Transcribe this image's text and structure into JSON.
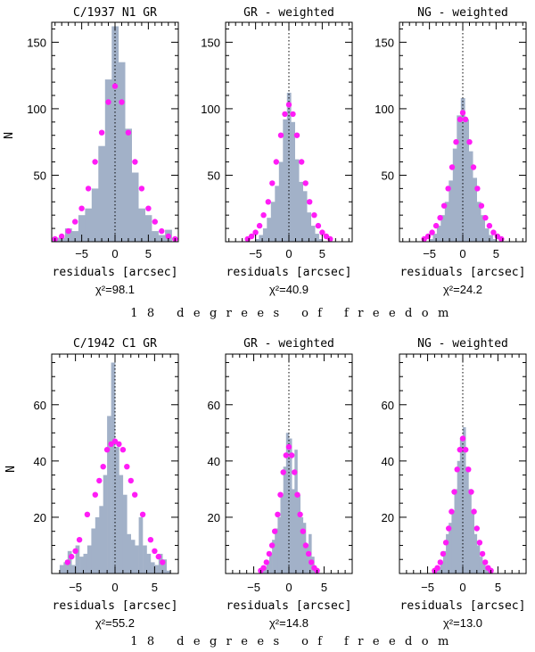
{
  "chart_data": [
    {
      "type": "bar",
      "row": 0,
      "col": 0,
      "title": "C/1937 N1   GR",
      "xlabel": "residuals [arcsec]",
      "ylabel": "N",
      "chi2": "χ²=98.1",
      "xlim": [
        -9.5,
        9.5
      ],
      "ylim": [
        0,
        165
      ],
      "xticks": [
        -5,
        0,
        5
      ],
      "yticks": [
        50,
        100,
        150
      ],
      "bin_width": 1,
      "bins": [
        -9,
        -8,
        -7,
        -6,
        -5,
        -4,
        -3,
        -2,
        -1,
        0,
        1,
        2,
        3,
        4,
        5,
        6,
        7,
        8
      ],
      "counts": [
        3,
        3,
        10,
        8,
        20,
        25,
        40,
        72,
        122,
        162,
        135,
        85,
        52,
        25,
        20,
        8,
        5,
        9
      ],
      "model_x": [
        -9,
        -8,
        -7,
        -6,
        -5,
        -4,
        -3,
        -2,
        -1,
        0,
        1,
        2,
        3,
        4,
        5,
        6,
        7,
        8,
        9
      ],
      "model_y": [
        2,
        4,
        8,
        15,
        25,
        40,
        60,
        82,
        105,
        117,
        105,
        82,
        60,
        40,
        25,
        15,
        8,
        4,
        2
      ]
    },
    {
      "type": "bar",
      "row": 0,
      "col": 1,
      "title": "GR - weighted",
      "xlabel": "residuals [arcsec]",
      "ylabel": "",
      "chi2": "χ²=40.9",
      "xlim": [
        -9.5,
        9.5
      ],
      "ylim": [
        0,
        165
      ],
      "xticks": [
        -5,
        0,
        5
      ],
      "yticks": [
        50,
        100,
        150
      ],
      "bin_width": 0.6,
      "bins": [
        -4.8,
        -4.2,
        -3.6,
        -3.0,
        -2.4,
        -1.8,
        -1.2,
        -0.6,
        0,
        0.6,
        1.2,
        1.8,
        2.4,
        3.0,
        3.6,
        4.2,
        4.8
      ],
      "counts": [
        2,
        5,
        10,
        18,
        30,
        42,
        60,
        92,
        112,
        90,
        62,
        45,
        38,
        22,
        12,
        6,
        2
      ],
      "model_x": [
        -6.2,
        -5.6,
        -5.0,
        -4.4,
        -3.8,
        -3.1,
        -2.5,
        -1.9,
        -1.2,
        -0.6,
        0,
        0.6,
        1.2,
        1.9,
        2.5,
        3.1,
        3.8,
        4.4,
        5.0,
        5.6,
        6.2
      ],
      "model_y": [
        2,
        4,
        7,
        12,
        20,
        30,
        44,
        60,
        80,
        96,
        103,
        96,
        80,
        60,
        44,
        30,
        20,
        12,
        7,
        4,
        2
      ]
    },
    {
      "type": "bar",
      "row": 0,
      "col": 2,
      "title": "NG - weighted",
      "xlabel": "residuals [arcsec]",
      "ylabel": "",
      "chi2": "χ²=24.2",
      "xlim": [
        -9.5,
        9.5
      ],
      "ylim": [
        0,
        165
      ],
      "xticks": [
        -5,
        0,
        5
      ],
      "yticks": [
        50,
        100,
        150
      ],
      "bin_width": 0.6,
      "bins": [
        -4.8,
        -4.2,
        -3.6,
        -3.0,
        -2.4,
        -1.8,
        -1.2,
        -0.6,
        0,
        0.6,
        1.2,
        1.8,
        2.4,
        3.0,
        3.6,
        4.2,
        4.8
      ],
      "counts": [
        2,
        6,
        12,
        20,
        30,
        46,
        70,
        95,
        108,
        92,
        68,
        48,
        30,
        20,
        10,
        5,
        2
      ],
      "model_x": [
        -5.8,
        -5.2,
        -4.6,
        -4.0,
        -3.4,
        -2.8,
        -2.2,
        -1.6,
        -1.0,
        -0.4,
        0,
        0.4,
        1.0,
        1.6,
        2.2,
        2.8,
        3.4,
        4.0,
        4.6,
        5.2,
        5.8
      ],
      "model_y": [
        2,
        4,
        7,
        12,
        18,
        27,
        40,
        56,
        75,
        92,
        97,
        92,
        75,
        56,
        40,
        27,
        18,
        12,
        7,
        4,
        2
      ]
    },
    {
      "type": "bar",
      "row": 1,
      "col": 0,
      "title": "C/1942 C1   GR",
      "xlabel": "residuals [arcsec]",
      "ylabel": "N",
      "chi2": "χ²=55.2",
      "xlim": [
        -8,
        8
      ],
      "ylim": [
        0,
        78
      ],
      "xticks": [
        -5,
        0,
        5
      ],
      "yticks": [
        20,
        40,
        60
      ],
      "bin_width": 0.5,
      "bins": [
        -6.75,
        -6.25,
        -5.75,
        -5.25,
        -4.75,
        -4.25,
        -3.75,
        -3.25,
        -2.75,
        -2.25,
        -1.75,
        -1.25,
        -0.75,
        -0.25,
        0.25,
        0.75,
        1.25,
        1.75,
        2.25,
        2.75,
        3.25,
        3.75,
        4.25,
        4.75,
        5.25,
        5.75,
        6.25,
        6.75
      ],
      "counts": [
        3,
        4,
        8,
        3,
        10,
        6,
        7,
        10,
        16,
        20,
        24,
        35,
        56,
        75,
        45,
        35,
        28,
        14,
        12,
        10,
        20,
        10,
        7,
        4,
        3,
        7,
        5,
        1
      ],
      "model_x": [
        -6.0,
        -5.5,
        -5.0,
        -4.5,
        -3.5,
        -2.5,
        -2.0,
        -1.5,
        -1.0,
        -0.5,
        0,
        0.5,
        1.0,
        1.5,
        2.0,
        2.5,
        3.5,
        4.5,
        5.0,
        5.5,
        6.0
      ],
      "model_y": [
        4,
        6,
        8,
        12,
        21,
        28,
        33,
        38,
        44,
        46,
        47,
        46,
        44,
        38,
        33,
        28,
        21,
        12,
        8,
        6,
        4
      ]
    },
    {
      "type": "bar",
      "row": 1,
      "col": 1,
      "title": "GR - weighted",
      "xlabel": "residuals [arcsec]",
      "ylabel": "",
      "chi2": "χ²=14.8",
      "xlim": [
        -9,
        9
      ],
      "ylim": [
        0,
        78
      ],
      "xticks": [
        -5,
        0,
        5
      ],
      "yticks": [
        20,
        40,
        60
      ],
      "bin_width": 0.4,
      "bins": [
        -3.8,
        -3.4,
        -3.0,
        -2.6,
        -2.2,
        -1.8,
        -1.4,
        -1.0,
        -0.6,
        -0.2,
        0.2,
        0.6,
        1.0,
        1.4,
        1.8,
        2.2,
        2.6,
        3.0,
        3.4,
        3.8
      ],
      "counts": [
        1,
        2,
        4,
        7,
        12,
        16,
        20,
        28,
        38,
        50,
        48,
        30,
        44,
        28,
        20,
        18,
        10,
        14,
        6,
        2
      ],
      "model_x": [
        -4.0,
        -3.6,
        -3.2,
        -2.8,
        -2.4,
        -2.0,
        -1.6,
        -1.2,
        -0.8,
        -0.4,
        0,
        0.4,
        0.8,
        1.2,
        1.6,
        2.0,
        2.4,
        2.8,
        3.2,
        3.6,
        4.0
      ],
      "model_y": [
        1,
        2,
        4,
        7,
        10,
        15,
        21,
        28,
        36,
        42,
        45,
        42,
        36,
        28,
        21,
        15,
        10,
        7,
        4,
        2,
        1
      ]
    },
    {
      "type": "bar",
      "row": 1,
      "col": 2,
      "title": "NG - weighted",
      "xlabel": "residuals [arcsec]",
      "ylabel": "",
      "chi2": "χ²=13.0",
      "xlim": [
        -9,
        9
      ],
      "ylim": [
        0,
        78
      ],
      "xticks": [
        -5,
        0,
        5
      ],
      "yticks": [
        20,
        40,
        60
      ],
      "bin_width": 0.4,
      "bins": [
        -3.8,
        -3.4,
        -3.0,
        -2.6,
        -2.2,
        -1.8,
        -1.4,
        -1.0,
        -0.6,
        -0.2,
        0.2,
        0.6,
        1.0,
        1.4,
        1.8,
        2.2,
        2.6,
        3.0,
        3.4,
        3.8
      ],
      "counts": [
        1,
        2,
        4,
        8,
        14,
        18,
        22,
        30,
        40,
        48,
        52,
        38,
        30,
        22,
        14,
        10,
        6,
        4,
        2,
        1
      ],
      "model_x": [
        -4.0,
        -3.6,
        -3.2,
        -2.8,
        -2.4,
        -2.0,
        -1.6,
        -1.2,
        -0.8,
        -0.4,
        0,
        0.4,
        0.8,
        1.2,
        1.6,
        2.0,
        2.4,
        2.8,
        3.2,
        3.6,
        4.0
      ],
      "model_y": [
        1,
        2,
        4,
        7,
        11,
        16,
        22,
        29,
        37,
        44,
        48,
        44,
        37,
        29,
        22,
        16,
        11,
        7,
        4,
        2,
        1
      ]
    }
  ],
  "dof_label": "18 degrees of freedom",
  "colors": {
    "bars": "#a2b1c8",
    "model_dots": "#ff1cf6",
    "axes": "#000000"
  }
}
